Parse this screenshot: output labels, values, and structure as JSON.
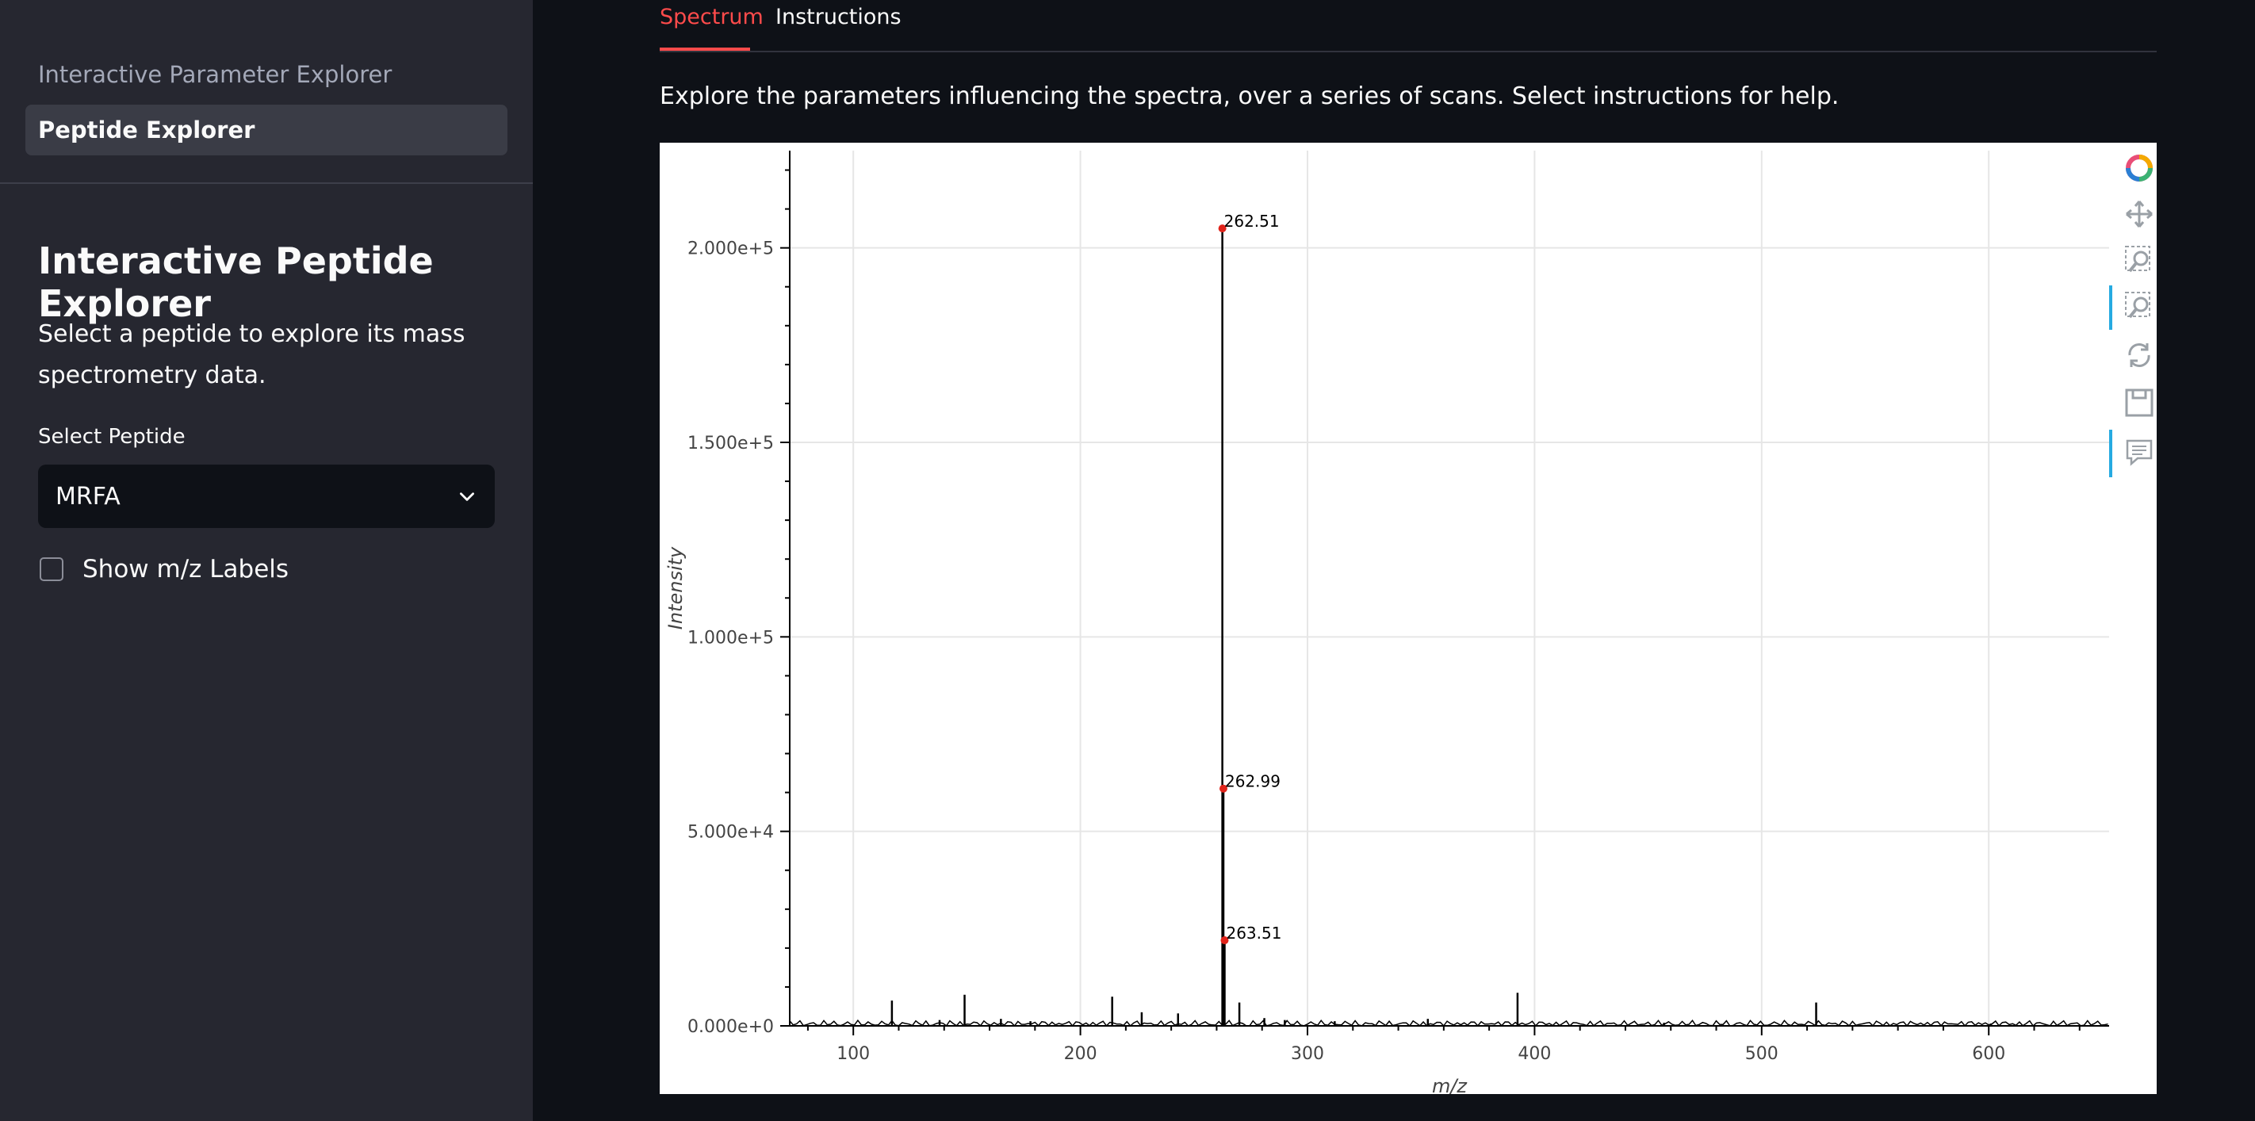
{
  "sidebar": {
    "nav": [
      {
        "label": "Interactive Parameter Explorer"
      },
      {
        "label": "Peptide Explorer"
      }
    ],
    "title": "Interactive Peptide Explorer",
    "description": "Select a peptide to explore its mass spectrometry data.",
    "select_label": "Select Peptide",
    "select_value": "MRFA",
    "checkbox_label": "Show m/z Labels"
  },
  "tabs": [
    {
      "label": "Spectrum"
    },
    {
      "label": "Instructions"
    }
  ],
  "main": {
    "description": "Explore the parameters influencing the spectra, over a series of scans. Select instructions for help."
  },
  "colors": {
    "accent": "#ff4b4b",
    "peak_marker": "#e0241b"
  },
  "chart_data": {
    "type": "line",
    "xlabel": "m/z",
    "ylabel": "Intensity",
    "xlim": [
      72,
      653
    ],
    "ylim": [
      0,
      225000
    ],
    "x_ticks": [
      100,
      200,
      300,
      400,
      500,
      600
    ],
    "y_ticks": [
      0,
      50000,
      100000,
      150000,
      200000
    ],
    "y_tick_labels": [
      "0.000e+0",
      "5.000e+4",
      "1.000e+5",
      "1.500e+5",
      "2.000e+5"
    ],
    "grid": true,
    "peaks": [
      {
        "mz": 117,
        "intensity": 6500
      },
      {
        "mz": 138,
        "intensity": 1500
      },
      {
        "mz": 149,
        "intensity": 8000
      },
      {
        "mz": 165,
        "intensity": 1800
      },
      {
        "mz": 178,
        "intensity": 1200
      },
      {
        "mz": 214,
        "intensity": 7500
      },
      {
        "mz": 227,
        "intensity": 3500
      },
      {
        "mz": 243,
        "intensity": 3200
      },
      {
        "mz": 262.51,
        "intensity": 205000
      },
      {
        "mz": 262.99,
        "intensity": 61000
      },
      {
        "mz": 263.51,
        "intensity": 22000
      },
      {
        "mz": 270,
        "intensity": 6000
      },
      {
        "mz": 281,
        "intensity": 2000
      },
      {
        "mz": 290,
        "intensity": 1500
      },
      {
        "mz": 312,
        "intensity": 1200
      },
      {
        "mz": 353,
        "intensity": 1800
      },
      {
        "mz": 392.5,
        "intensity": 8500
      },
      {
        "mz": 457,
        "intensity": 800
      },
      {
        "mz": 524,
        "intensity": 6000
      },
      {
        "mz": 601,
        "intensity": 600
      }
    ],
    "annotations": [
      {
        "mz": 262.51,
        "intensity": 205000,
        "label": "262.51"
      },
      {
        "mz": 262.99,
        "intensity": 61000,
        "label": "262.99"
      },
      {
        "mz": 263.51,
        "intensity": 22000,
        "label": "263.51"
      }
    ]
  }
}
